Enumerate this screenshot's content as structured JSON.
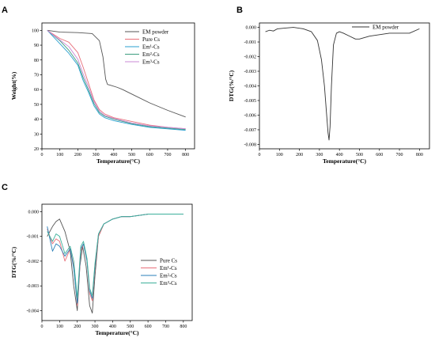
{
  "chart_data": [
    {
      "panel": "A",
      "type": "line",
      "title": "",
      "xlabel": "Temperature(°C)",
      "ylabel": "Weight(%)",
      "xlim": [
        0,
        850
      ],
      "ylim": [
        20,
        105
      ],
      "xticks": [
        0,
        100,
        200,
        300,
        400,
        500,
        600,
        700,
        800
      ],
      "yticks": [
        20,
        30,
        40,
        50,
        60,
        70,
        80,
        90,
        100
      ],
      "legend_position": "top-right",
      "series": [
        {
          "name": "EM powder",
          "color": "#555555",
          "legend_label": "EM powder",
          "x": [
            30,
            100,
            200,
            280,
            320,
            340,
            355,
            365,
            380,
            420,
            450,
            500,
            600,
            700,
            800
          ],
          "y": [
            100,
            98.8,
            98.5,
            97.8,
            93,
            82,
            67,
            63.5,
            63,
            61.5,
            60,
            57,
            51,
            46,
            41.5
          ]
        },
        {
          "name": "Pure Cs",
          "color": "#e8707a",
          "legend_label": "Pure Cs",
          "x": [
            30,
            100,
            150,
            200,
            230,
            260,
            290,
            320,
            350,
            400,
            500,
            600,
            700,
            800
          ],
          "y": [
            100,
            94.5,
            92,
            85,
            75,
            64,
            53,
            46.5,
            43.5,
            41,
            38.5,
            36,
            34.5,
            33.5
          ]
        },
        {
          "name": "Em1-Cs",
          "color": "#2a9fd0",
          "legend_label": "Em¹-Cs",
          "x": [
            30,
            100,
            150,
            200,
            230,
            260,
            290,
            320,
            350,
            400,
            500,
            600,
            700,
            800
          ],
          "y": [
            100,
            91,
            84.5,
            76.5,
            66,
            58,
            49,
            43.5,
            41,
            39,
            36.5,
            34.5,
            33.5,
            32.5
          ]
        },
        {
          "name": "Em2-Cs",
          "color": "#3d9e7f",
          "legend_label": "Em²-Cs",
          "x": [
            30,
            100,
            150,
            200,
            230,
            260,
            290,
            320,
            350,
            400,
            500,
            600,
            700,
            800
          ],
          "y": [
            100,
            93,
            86.5,
            78,
            68,
            59.5,
            50.5,
            44.5,
            42,
            40,
            37,
            35,
            34,
            33
          ]
        },
        {
          "name": "Em3-Cs",
          "color": "#c98ad6",
          "legend_label": "Em³-Cs",
          "x": [
            30,
            100,
            150,
            200,
            230,
            260,
            290,
            320,
            350,
            400,
            500,
            600,
            700,
            800
          ],
          "y": [
            100,
            93.5,
            89,
            80.5,
            70.5,
            61.5,
            52,
            45.5,
            42.5,
            40.5,
            37.5,
            35.5,
            34.5,
            33.5
          ]
        }
      ]
    },
    {
      "panel": "B",
      "type": "line",
      "title": "",
      "xlabel": "Temperature(°C)",
      "ylabel": "DTG(%/°C)",
      "xlim": [
        0,
        850
      ],
      "ylim": [
        -0.0083,
        0.0003
      ],
      "xticks": [
        0,
        100,
        200,
        300,
        400,
        500,
        600,
        700,
        800
      ],
      "yticks": [
        -0.008,
        -0.007,
        -0.006,
        -0.005,
        -0.004,
        -0.003,
        -0.002,
        -0.001,
        0.0
      ],
      "ytick_labels": [
        "-0.008",
        "-0.007",
        "-0.006",
        "-0.005",
        "-0.004",
        "-0.003",
        "-0.002",
        "-0.001",
        "0.000"
      ],
      "legend_position": "top-right",
      "series": [
        {
          "name": "EM powder",
          "color": "#333333",
          "legend_label": "EM powder",
          "x": [
            30,
            50,
            70,
            90,
            130,
            170,
            220,
            260,
            290,
            310,
            325,
            335,
            343,
            348,
            353,
            360,
            370,
            385,
            400,
            420,
            450,
            480,
            500,
            550,
            600,
            650,
            700,
            750,
            800
          ],
          "y": [
            -0.0003,
            -0.0002,
            -0.00025,
            -0.0001,
            -5e-05,
            0.0,
            -0.0001,
            -0.0003,
            -0.0009,
            -0.0022,
            -0.004,
            -0.0058,
            -0.0072,
            -0.0077,
            -0.0068,
            -0.004,
            -0.0012,
            -0.0004,
            -0.0003,
            -0.0004,
            -0.0006,
            -0.0008,
            -0.0008,
            -0.0006,
            -0.0005,
            -0.0004,
            -0.0004,
            -0.0004,
            -0.0001
          ]
        }
      ]
    },
    {
      "panel": "C",
      "type": "line",
      "title": "",
      "xlabel": "Temperature(°C)",
      "ylabel": "DTG(%/°C)",
      "xlim": [
        0,
        850
      ],
      "ylim": [
        -0.0044,
        0.0003
      ],
      "xticks": [
        0,
        100,
        200,
        300,
        400,
        500,
        600,
        700,
        800
      ],
      "yticks": [
        -0.004,
        -0.003,
        -0.002,
        -0.001,
        0.0
      ],
      "ytick_labels": [
        "-0.004",
        "-0.003",
        "-0.002",
        "-0.001",
        "0.000"
      ],
      "legend_position": "bottom-right",
      "series": [
        {
          "name": "Pure Cs",
          "color": "#555555",
          "legend_label": "Pure Cs",
          "x": [
            30,
            60,
            80,
            100,
            130,
            160,
            180,
            200,
            215,
            230,
            250,
            270,
            285,
            300,
            320,
            350,
            400,
            450,
            500,
            600,
            700,
            800
          ],
          "y": [
            -0.001,
            -0.0006,
            -0.0004,
            -0.0003,
            -0.0008,
            -0.0016,
            -0.003,
            -0.004,
            -0.0022,
            -0.0014,
            -0.0022,
            -0.0038,
            -0.0041,
            -0.0026,
            -0.001,
            -0.0005,
            -0.0003,
            -0.0002,
            -0.0002,
            -0.0001,
            -0.0001,
            -0.0001
          ]
        },
        {
          "name": "Em1-Cs",
          "color": "#e8707a",
          "legend_label": "Em¹-Cs",
          "x": [
            30,
            60,
            80,
            100,
            130,
            160,
            180,
            200,
            220,
            235,
            255,
            270,
            285,
            300,
            320,
            350,
            400,
            450,
            500,
            600,
            700,
            800
          ],
          "y": [
            -0.0007,
            -0.0013,
            -0.0011,
            -0.0012,
            -0.002,
            -0.0015,
            -0.0022,
            -0.0038,
            -0.0016,
            -0.0013,
            -0.002,
            -0.0033,
            -0.0036,
            -0.0023,
            -0.001,
            -0.0005,
            -0.0003,
            -0.0002,
            -0.0002,
            -0.0001,
            -0.0001,
            -0.0001
          ]
        },
        {
          "name": "Em2-Cs",
          "color": "#2a7fb8",
          "legend_label": "Em²-Cs",
          "x": [
            30,
            60,
            80,
            100,
            130,
            160,
            180,
            200,
            220,
            235,
            255,
            270,
            285,
            300,
            320,
            350,
            400,
            450,
            500,
            600,
            700,
            800
          ],
          "y": [
            -0.0006,
            -0.0016,
            -0.0013,
            -0.0014,
            -0.0018,
            -0.0015,
            -0.0023,
            -0.0037,
            -0.0015,
            -0.0013,
            -0.002,
            -0.0032,
            -0.0035,
            -0.0022,
            -0.0009,
            -0.0005,
            -0.0003,
            -0.0002,
            -0.0002,
            -0.0001,
            -0.0001,
            -0.0001
          ]
        },
        {
          "name": "Em3-Cs",
          "color": "#3db09a",
          "legend_label": "Em³-Cs",
          "x": [
            30,
            60,
            80,
            100,
            130,
            160,
            180,
            200,
            220,
            235,
            255,
            270,
            285,
            300,
            320,
            350,
            400,
            450,
            500,
            600,
            700,
            800
          ],
          "y": [
            -0.0008,
            -0.0012,
            -0.0009,
            -0.001,
            -0.0017,
            -0.0014,
            -0.002,
            -0.0035,
            -0.0014,
            -0.0012,
            -0.0019,
            -0.0031,
            -0.0034,
            -0.0021,
            -0.0009,
            -0.0005,
            -0.0003,
            -0.0002,
            -0.0002,
            -0.0001,
            -0.0001,
            -0.0001
          ]
        }
      ]
    }
  ]
}
